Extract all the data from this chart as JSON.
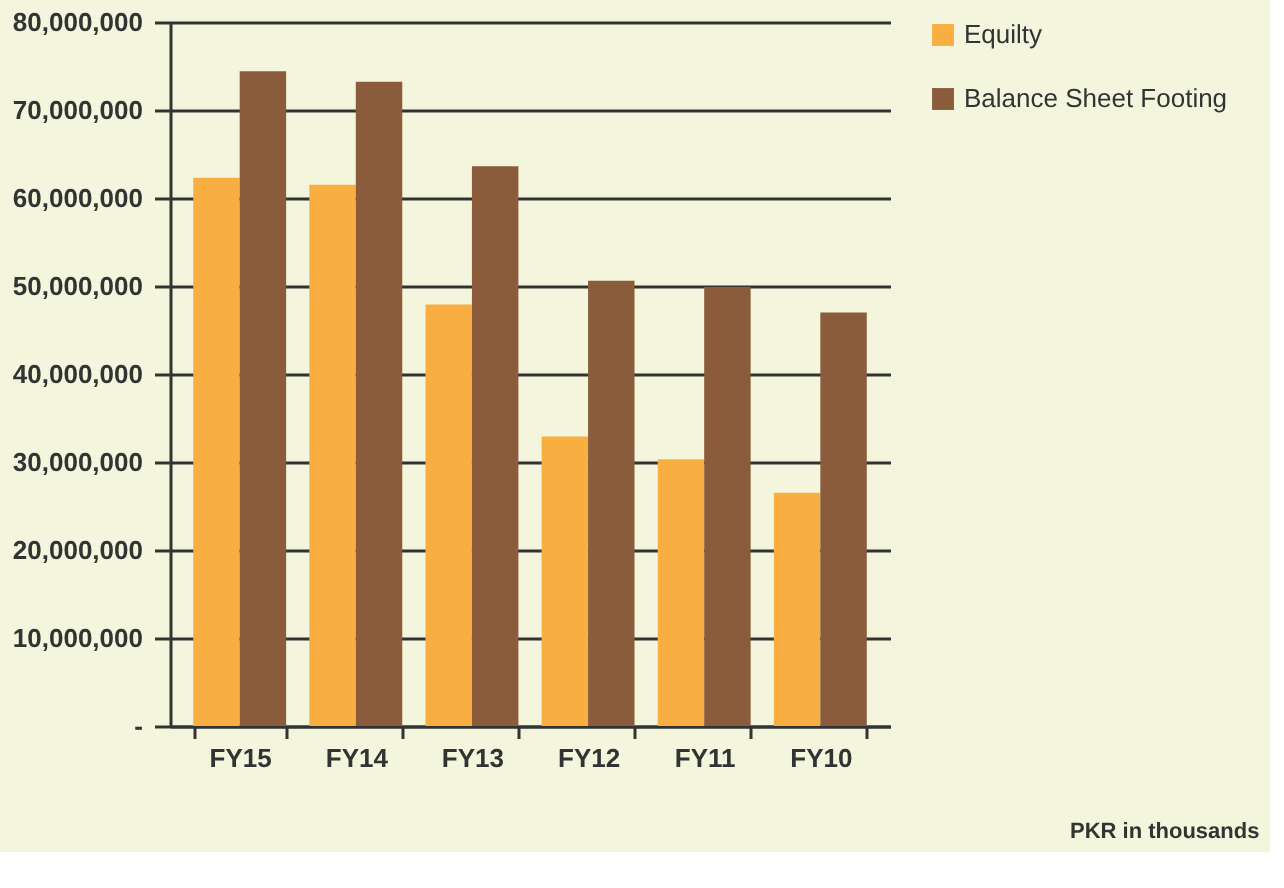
{
  "chart_data": {
    "type": "bar",
    "categories": [
      "FY15",
      "FY14",
      "FY13",
      "FY12",
      "FY11",
      "FY10"
    ],
    "series": [
      {
        "name": "Equilty",
        "color": "#f9ae42",
        "values": [
          62300000,
          61500000,
          47900000,
          32900000,
          30300000,
          26500000
        ]
      },
      {
        "name": "Balance Sheet Footing",
        "color": "#8a5c3b",
        "values": [
          74400000,
          73200000,
          63600000,
          50600000,
          49900000,
          47000000
        ]
      }
    ],
    "ylim": [
      0,
      80000000
    ],
    "yticks": [
      {
        "value": 0,
        "label": "-"
      },
      {
        "value": 10000000,
        "label": "10,000,000"
      },
      {
        "value": 20000000,
        "label": "20,000,000"
      },
      {
        "value": 30000000,
        "label": "30,000,000"
      },
      {
        "value": 40000000,
        "label": "40,000,000"
      },
      {
        "value": 50000000,
        "label": "50,000,000"
      },
      {
        "value": 60000000,
        "label": "60,000,000"
      },
      {
        "value": 70000000,
        "label": "70,000,000"
      },
      {
        "value": 80000000,
        "label": "80,000,000"
      }
    ],
    "grid": "y",
    "legend": "right",
    "annotations": [
      "PKR in thousands"
    ]
  }
}
